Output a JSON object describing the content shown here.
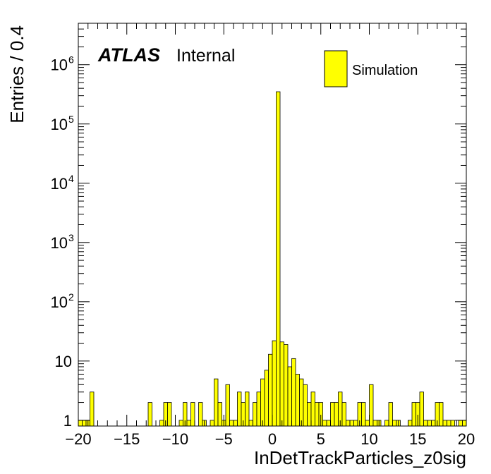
{
  "atlas_label": {
    "bold": "ATLAS",
    "normal": "Internal"
  },
  "colors": {
    "fill": "#ffff00",
    "stroke": "#000000"
  },
  "chart_data": {
    "type": "bar",
    "histogram": true,
    "xlabel": "InDetTrackParticles_z0sig",
    "ylabel": "Entries / 0.4",
    "xlim": [
      -20,
      20
    ],
    "ylim": [
      0.8,
      5000000
    ],
    "log_y": true,
    "legend": {
      "position": "top-right",
      "entries": [
        "Simulation"
      ]
    },
    "xticks": [
      -20,
      -15,
      -10,
      -5,
      0,
      5,
      10,
      15,
      20
    ],
    "xtick_labels": [
      "−20",
      "−15",
      "−10",
      "−5",
      "0",
      "5",
      "10",
      "15",
      "20"
    ],
    "ytick_labels": [
      {
        "value": 1,
        "base": "1",
        "exp": ""
      },
      {
        "value": 10,
        "base": "10",
        "exp": ""
      },
      {
        "value": 100,
        "base": "10",
        "exp": "2"
      },
      {
        "value": 1000,
        "base": "10",
        "exp": "3"
      },
      {
        "value": 10000,
        "base": "10",
        "exp": "4"
      },
      {
        "value": 100000,
        "base": "10",
        "exp": "5"
      },
      {
        "value": 1000000,
        "base": "10",
        "exp": "6"
      }
    ],
    "series": [
      {
        "name": "Simulation",
        "bin_width": 0.4,
        "x": [
          -20,
          -19.6,
          -19.2,
          -18.8,
          -18.4,
          -18,
          -17.6,
          -17.2,
          -16.8,
          -16.4,
          -16,
          -15.6,
          -15.2,
          -14.8,
          -14.4,
          -14,
          -13.6,
          -13.2,
          -12.8,
          -12.4,
          -12,
          -11.6,
          -11.2,
          -10.8,
          -10.4,
          -10,
          -9.6,
          -9.2,
          -8.8,
          -8.4,
          -8,
          -7.6,
          -7.2,
          -6.8,
          -6.4,
          -6,
          -5.6,
          -5.2,
          -4.8,
          -4.4,
          -4,
          -3.6,
          -3.2,
          -2.8,
          -2.4,
          -2,
          -1.6,
          -1.2,
          -0.8,
          -0.4,
          0,
          0.4,
          0.8,
          1.2,
          1.6,
          2,
          2.4,
          2.8,
          3.2,
          3.6,
          4,
          4.4,
          4.8,
          5.2,
          5.6,
          6,
          6.4,
          6.8,
          7.2,
          7.6,
          8,
          8.4,
          8.8,
          9.2,
          9.6,
          10,
          10.4,
          10.8,
          11.2,
          11.6,
          12,
          12.4,
          12.8,
          13.2,
          13.6,
          14,
          14.4,
          14.8,
          15.2,
          15.6,
          16,
          16.4,
          16.8,
          17.2,
          17.6,
          18,
          18.4,
          18.8,
          19.2,
          19.6
        ],
        "values": [
          1,
          1,
          1,
          3,
          0,
          0,
          0,
          0,
          0,
          0,
          0,
          0,
          0,
          0,
          0,
          0,
          0,
          0,
          2,
          0,
          0,
          1,
          2,
          2,
          0,
          0,
          1,
          2,
          1,
          2,
          0,
          2,
          1,
          0,
          1,
          5,
          2,
          1,
          4,
          1,
          1,
          3,
          2,
          3,
          1,
          2,
          3,
          5,
          7,
          13,
          22,
          350000,
          21,
          19,
          8,
          11,
          6,
          5,
          4,
          2,
          3,
          2,
          2,
          1,
          1,
          2,
          2,
          3,
          2,
          1,
          1,
          1,
          2,
          2,
          1,
          4,
          1,
          1,
          0,
          1,
          2,
          1,
          1,
          0,
          0,
          1,
          2,
          2,
          3,
          1,
          1,
          1,
          2,
          2,
          1,
          1,
          1,
          0,
          1,
          1
        ]
      }
    ]
  }
}
